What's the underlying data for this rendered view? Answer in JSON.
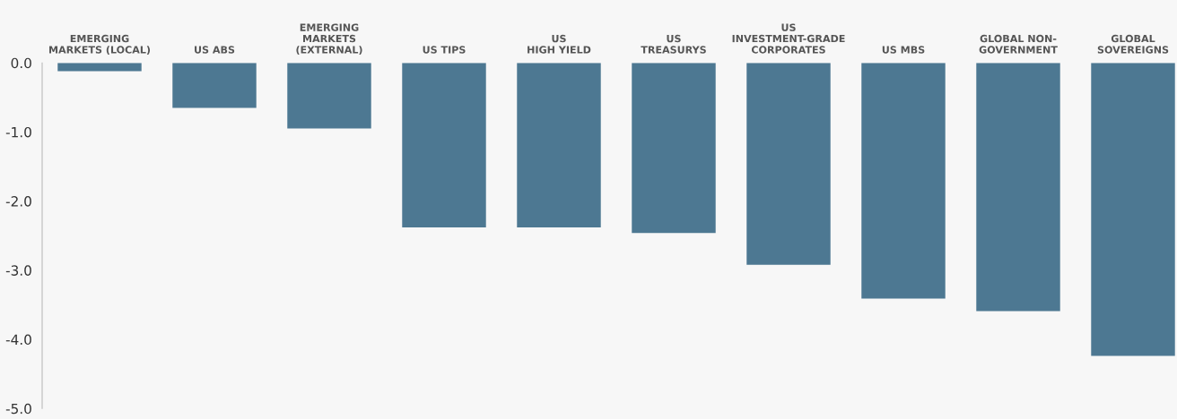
{
  "chart_data": {
    "type": "bar",
    "categories": [
      "EMERGING\nMARKETS (LOCAL)",
      "US ABS",
      "EMERGING\nMARKETS\n(EXTERNAL)",
      "US TIPS",
      "US\nHIGH YIELD",
      "US\nTREASURYS",
      "US\nINVESTMENT-GRADE\nCORPORATES",
      "US MBS",
      "GLOBAL NON-\nGOVERNMENT",
      "GLOBAL\nSOVEREIGNS"
    ],
    "values": [
      -0.12,
      -0.65,
      -0.95,
      -2.38,
      -2.38,
      -2.46,
      -2.92,
      -3.41,
      -3.59,
      -4.24
    ],
    "color": "#4d7892",
    "ylim": [
      -5,
      0
    ],
    "yticks": [
      {
        "value": 0,
        "label": "0.0"
      },
      {
        "value": -1,
        "label": "-1.0"
      },
      {
        "value": -2,
        "label": "-2.0"
      },
      {
        "value": -3,
        "label": "-3.0"
      },
      {
        "value": -4,
        "label": "-4.0"
      },
      {
        "value": -5,
        "label": "-5.0"
      }
    ],
    "grid": false,
    "legend": false
  }
}
